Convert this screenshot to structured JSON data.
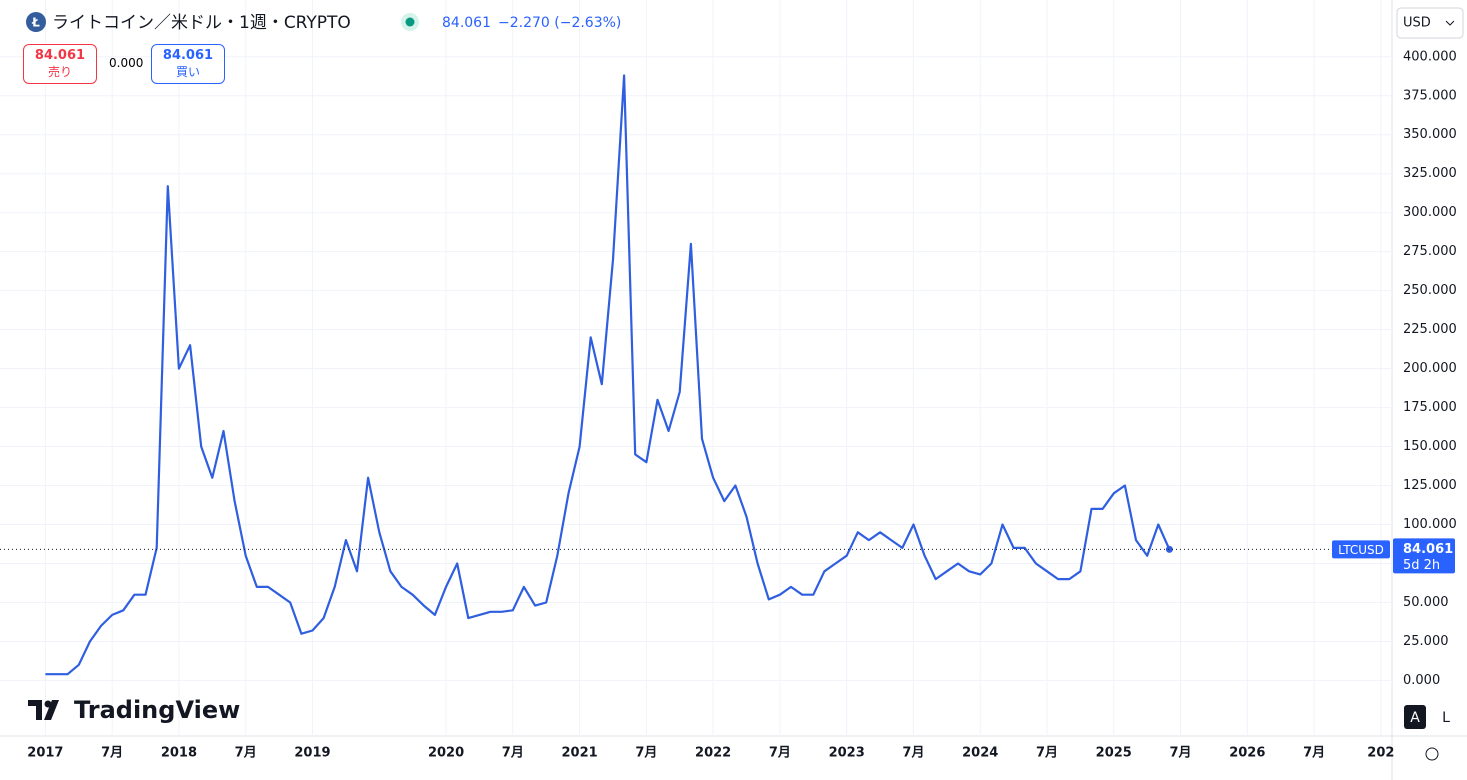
{
  "header": {
    "title": "ライトコイン／米ドル・1週・CRYPTO",
    "price": "84.061",
    "change": "−2.270 (−2.63%)",
    "sell_price": "84.061",
    "sell_label": "売り",
    "spread": "0.000",
    "buy_price": "84.061",
    "buy_label": "買い",
    "currency": "USD",
    "logo": "TradingView"
  },
  "controls": {
    "auto": "A",
    "log": "L"
  },
  "chart_data": {
    "type": "line",
    "color": "#2f5fe0",
    "grid": true,
    "x": [
      "2017-01",
      "2017-02",
      "2017-03",
      "2017-04",
      "2017-05",
      "2017-06",
      "2017-07",
      "2017-08",
      "2017-09",
      "2017-10",
      "2017-11",
      "2017-12",
      "2018-01",
      "2018-02",
      "2018-03",
      "2018-04",
      "2018-05",
      "2018-06",
      "2018-07",
      "2018-08",
      "2018-09",
      "2018-10",
      "2018-11",
      "2018-12",
      "2019-01",
      "2019-02",
      "2019-03",
      "2019-04",
      "2019-05",
      "2019-06",
      "2019-07",
      "2019-08",
      "2019-09",
      "2019-10",
      "2019-11",
      "2019-12",
      "2020-01",
      "2020-02",
      "2020-03",
      "2020-04",
      "2020-05",
      "2020-06",
      "2020-07",
      "2020-08",
      "2020-09",
      "2020-10",
      "2020-11",
      "2020-12",
      "2021-01",
      "2021-02",
      "2021-03",
      "2021-04",
      "2021-05",
      "2021-06",
      "2021-07",
      "2021-08",
      "2021-09",
      "2021-10",
      "2021-11",
      "2021-12",
      "2022-01",
      "2022-02",
      "2022-03",
      "2022-04",
      "2022-05",
      "2022-06",
      "2022-07",
      "2022-08",
      "2022-09",
      "2022-10",
      "2022-11",
      "2022-12",
      "2023-01",
      "2023-02",
      "2023-03",
      "2023-04",
      "2023-05",
      "2023-06",
      "2023-07",
      "2023-08",
      "2023-09",
      "2023-10",
      "2023-11",
      "2023-12",
      "2024-01",
      "2024-02",
      "2024-03",
      "2024-04",
      "2024-05",
      "2024-06",
      "2024-07",
      "2024-08",
      "2024-09",
      "2024-10",
      "2024-11",
      "2024-12",
      "2025-01",
      "2025-02",
      "2025-03",
      "2025-04",
      "2025-05",
      "2025-06"
    ],
    "values": [
      4,
      4,
      4,
      10,
      25,
      35,
      42,
      45,
      55,
      55,
      85,
      317,
      200,
      215,
      150,
      130,
      160,
      115,
      80,
      60,
      60,
      55,
      50,
      30,
      32,
      40,
      60,
      90,
      70,
      130,
      95,
      70,
      60,
      55,
      48,
      42,
      60,
      75,
      40,
      42,
      44,
      44,
      45,
      60,
      48,
      50,
      80,
      120,
      150,
      220,
      190,
      270,
      388,
      145,
      140,
      180,
      160,
      185,
      280,
      155,
      130,
      115,
      125,
      105,
      75,
      52,
      55,
      60,
      55,
      55,
      70,
      75,
      80,
      95,
      90,
      95,
      90,
      85,
      100,
      80,
      65,
      70,
      75,
      70,
      68,
      75,
      100,
      85,
      85,
      75,
      70,
      65,
      65,
      70,
      110,
      110,
      120,
      125,
      90,
      80,
      100,
      84.061
    ],
    "xlim": [
      "2016-10",
      "2027-02"
    ],
    "xticks": [
      {
        "value": "2017-01",
        "label": "2017"
      },
      {
        "value": "2017-07",
        "label": "7月"
      },
      {
        "value": "2018-01",
        "label": "2018"
      },
      {
        "value": "2018-07",
        "label": "7月"
      },
      {
        "value": "2019-01",
        "label": "2019"
      },
      {
        "value": "2020-01",
        "label": "2020"
      },
      {
        "value": "2020-07",
        "label": "7月"
      },
      {
        "value": "2021-01",
        "label": "2021"
      },
      {
        "value": "2021-07",
        "label": "7月"
      },
      {
        "value": "2022-01",
        "label": "2022"
      },
      {
        "value": "2022-07",
        "label": "7月"
      },
      {
        "value": "2023-01",
        "label": "2023"
      },
      {
        "value": "2023-07",
        "label": "7月"
      },
      {
        "value": "2024-01",
        "label": "2024"
      },
      {
        "value": "2024-07",
        "label": "7月"
      },
      {
        "value": "2025-01",
        "label": "2025"
      },
      {
        "value": "2025-07",
        "label": "7月"
      },
      {
        "value": "2026-01",
        "label": "2026"
      },
      {
        "value": "2026-07",
        "label": "7月"
      },
      {
        "value": "2027-01",
        "label": "202"
      }
    ],
    "ylim": [
      -35,
      430
    ],
    "yticks": [
      {
        "value": 0,
        "label": "0.000"
      },
      {
        "value": 25,
        "label": "25.000"
      },
      {
        "value": 50,
        "label": "50.000"
      },
      {
        "value": 75,
        "label": "75.000"
      },
      {
        "value": 100,
        "label": "100.000"
      },
      {
        "value": 125,
        "label": "125.000"
      },
      {
        "value": 150,
        "label": "150.000"
      },
      {
        "value": 175,
        "label": "175.000"
      },
      {
        "value": 200,
        "label": "200.000"
      },
      {
        "value": 225,
        "label": "225.000"
      },
      {
        "value": 250,
        "label": "250.000"
      },
      {
        "value": 275,
        "label": "275.000"
      },
      {
        "value": 300,
        "label": "300.000"
      },
      {
        "value": 325,
        "label": "325.000"
      },
      {
        "value": 350,
        "label": "350.000"
      },
      {
        "value": 375,
        "label": "375.000"
      },
      {
        "value": 400,
        "label": "400.000"
      }
    ],
    "price_line": {
      "value": 84.061,
      "label": "84.061",
      "symbol": "LTCUSD",
      "countdown": "5d 2h"
    }
  }
}
